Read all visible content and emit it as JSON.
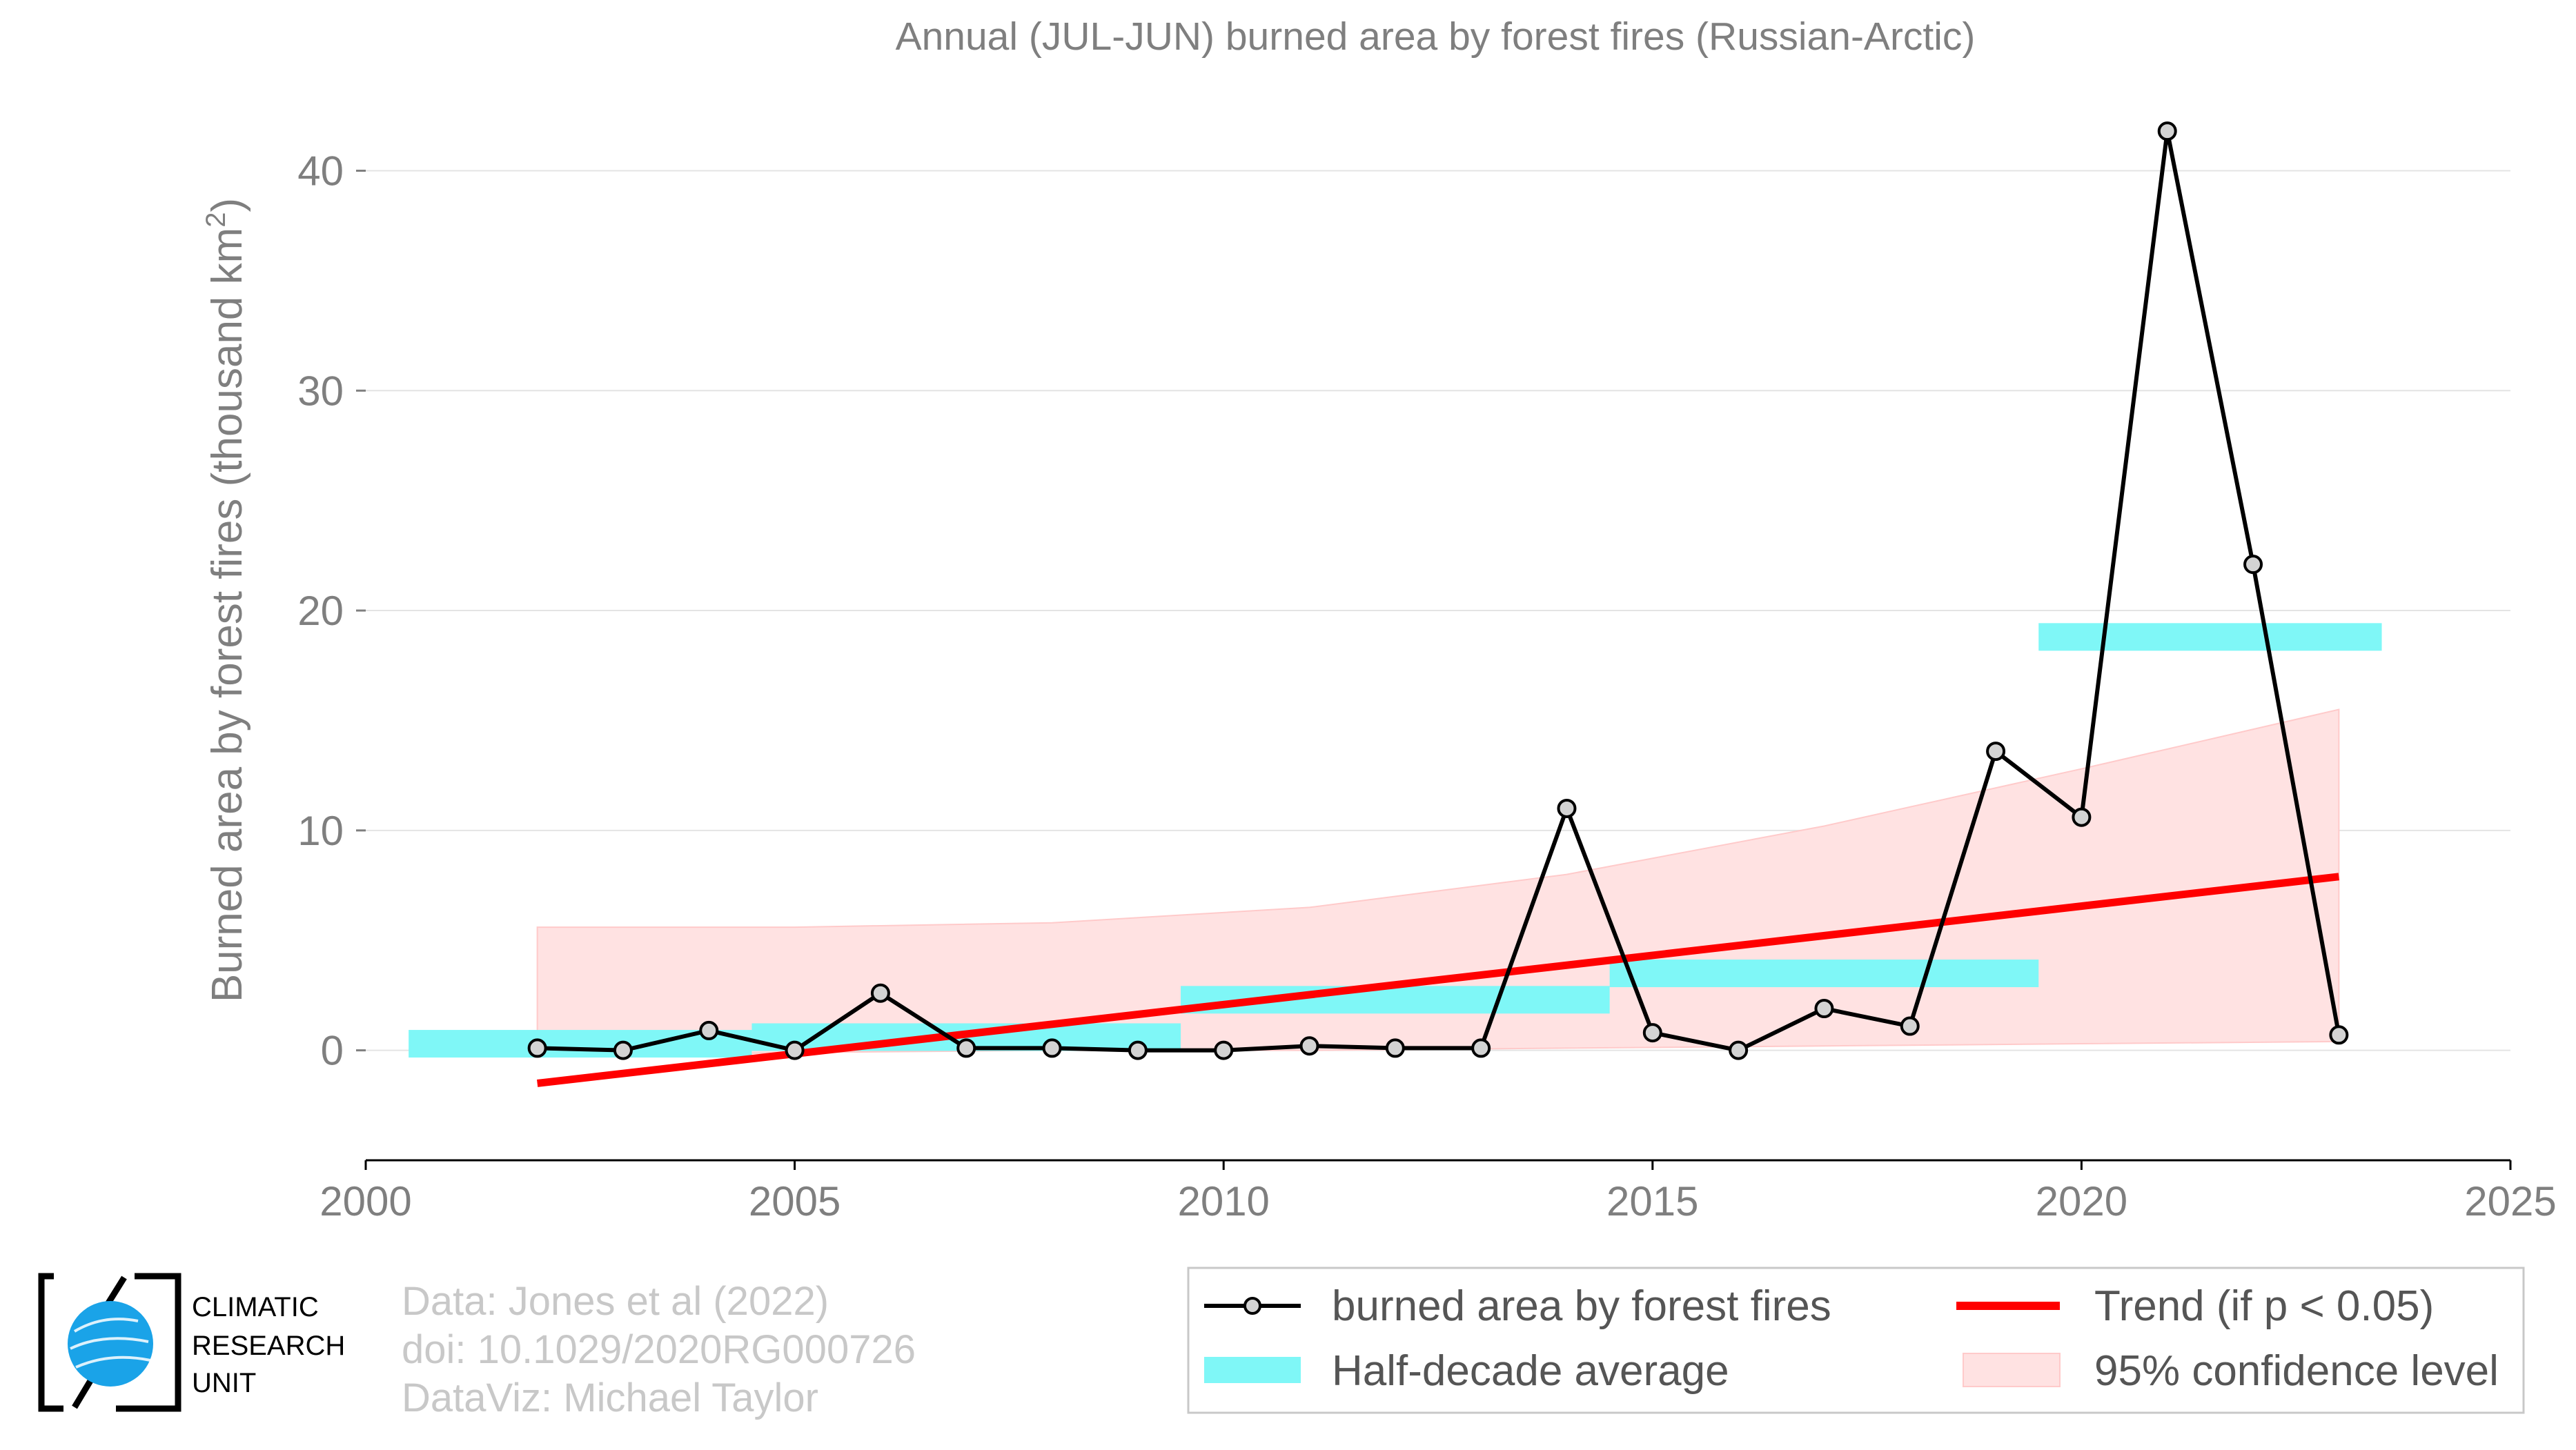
{
  "chart_data": {
    "type": "line",
    "title": "Annual (JUL-JUN) burned area by forest fires (Russian-Arctic)",
    "ylabel": "Burned area by forest fires (thousand km",
    "ylabel_superscript": "2",
    "ylabel_close": ")",
    "xlim": [
      2000,
      2025
    ],
    "ylim": [
      -5,
      44
    ],
    "xticks": [
      2000,
      2005,
      2010,
      2015,
      2020,
      2025
    ],
    "yticks": [
      0,
      10,
      20,
      30,
      40
    ],
    "grid": true,
    "series": [
      {
        "name": "burned area by forest fires",
        "x": [
          2002,
          2003,
          2004,
          2005,
          2006,
          2007,
          2008,
          2009,
          2010,
          2011,
          2012,
          2013,
          2014,
          2015,
          2016,
          2017,
          2018,
          2019,
          2020,
          2021,
          2022,
          2023
        ],
        "y": [
          0.1,
          0.0,
          0.9,
          0.0,
          2.6,
          0.1,
          0.1,
          0.0,
          0.0,
          0.2,
          0.1,
          0.1,
          11.0,
          0.8,
          0.0,
          1.9,
          1.1,
          13.6,
          10.6,
          41.8,
          22.1,
          0.7
        ],
        "color": "#000000",
        "marker_fill": "#d3d3d3"
      },
      {
        "name": "Half-decade average",
        "segments": [
          {
            "x0": 2000.5,
            "x1": 2004.5,
            "y": 0.3
          },
          {
            "x0": 2004.5,
            "x1": 2009.5,
            "y": 0.6
          },
          {
            "x0": 2009.5,
            "x1": 2014.5,
            "y": 2.3
          },
          {
            "x0": 2014.5,
            "x1": 2019.5,
            "y": 3.5
          },
          {
            "x0": 2019.5,
            "x1": 2023.5,
            "y": 18.8
          }
        ],
        "color": "#7ff7f7"
      },
      {
        "name": "Trend (if p < 0.05)",
        "x": [
          2002,
          2023
        ],
        "y": [
          -1.5,
          7.9
        ],
        "color": "#ff0000"
      },
      {
        "name": "95% confidence level",
        "x": [
          2002,
          2005,
          2008,
          2011,
          2014,
          2017,
          2020,
          2023
        ],
        "upper": [
          5.6,
          5.6,
          5.8,
          6.5,
          8.0,
          10.2,
          12.8,
          15.5
        ],
        "lower": [
          -0.3,
          -0.1,
          0.0,
          0.0,
          0.1,
          0.2,
          0.3,
          0.4
        ],
        "color": "#ffe2e2"
      }
    ],
    "legend": {
      "placement": "bottom-right",
      "entries": [
        "burned area by forest fires",
        "Trend (if p < 0.05)",
        "Half-decade average",
        "95% confidence level"
      ]
    }
  },
  "credits": {
    "line1": "Data: Jones et al (2022)",
    "line2": "doi: 10.1029/2020RG000726",
    "line3": "DataViz: Michael Taylor"
  },
  "logo": {
    "line1": "CLIMATIC",
    "line2": "RESEARCH",
    "line3": "UNIT",
    "color": "#1aa3e8"
  }
}
